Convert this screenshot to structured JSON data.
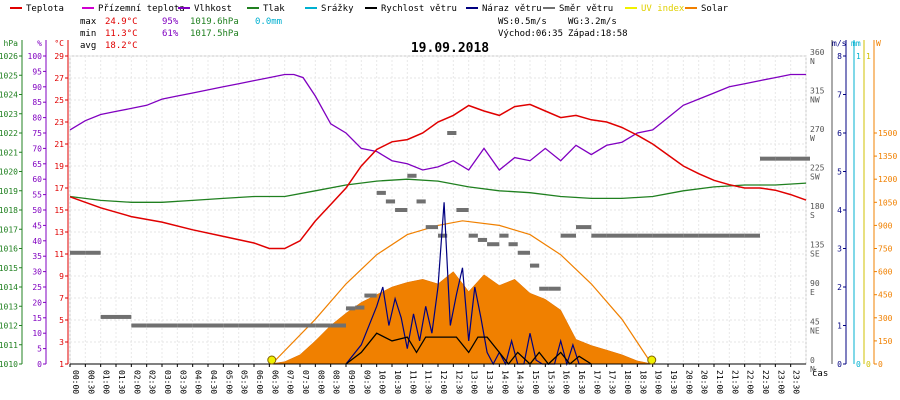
{
  "chart_data": {
    "type": "line",
    "title": "19.09.2018",
    "x_axis_label": "čas",
    "legend": [
      {
        "label": "Teplota",
        "color": "#e00000"
      },
      {
        "label": "Přízemní teplota",
        "color": "#d000d0"
      },
      {
        "label": "Vlhkost",
        "color": "#8000c0"
      },
      {
        "label": "Tlak",
        "color": "#208020"
      },
      {
        "label": "Srážky",
        "color": "#00b0d0"
      },
      {
        "label": "Rychlost větru",
        "color": "#000000"
      },
      {
        "label": "Náraz větru",
        "color": "#000080"
      },
      {
        "label": "Směr větru",
        "color": "#707070"
      },
      {
        "label": "UV index",
        "color": "#f0f000"
      },
      {
        "label": "Solar",
        "color": "#f08000"
      }
    ],
    "stats": {
      "max_label": "max",
      "min_label": "min",
      "avg_label": "avg",
      "max_temp": "24.9°C",
      "max_hum": "95%",
      "max_press": "1019.6hPa",
      "max_rain": "0.0mm",
      "min_temp": "11.3°C",
      "min_hum": "61%",
      "min_press": "1017.5hPa",
      "avg_temp": "18.2°C",
      "ws": "WS:0.5m/s",
      "wg": "WG:3.2m/s",
      "sunrise": "Východ:06:35",
      "sunset": "Západ:18:58"
    },
    "axes": {
      "pressure": {
        "unit": "hPa",
        "min": 1010,
        "max": 1026,
        "ticks": [
          1010,
          1011,
          1012,
          1013,
          1014,
          1015,
          1016,
          1017,
          1018,
          1019,
          1020,
          1021,
          1022,
          1023,
          1024,
          1025,
          1026
        ]
      },
      "humidity": {
        "unit": "%",
        "min": 0,
        "max": 100,
        "ticks": [
          0,
          5,
          10,
          15,
          20,
          25,
          30,
          35,
          40,
          45,
          50,
          55,
          60,
          65,
          70,
          75,
          80,
          85,
          90,
          95,
          100
        ]
      },
      "temperature": {
        "unit": "°C",
        "min": 1,
        "max": 29,
        "ticks": [
          1,
          3,
          5,
          7,
          9,
          11,
          13,
          15,
          17,
          19,
          21,
          23,
          25,
          27,
          29
        ]
      },
      "wind_dir": {
        "unit": "",
        "min": 0,
        "max": 360,
        "ticks": [
          0,
          45,
          90,
          135,
          180,
          225,
          270,
          315,
          360
        ],
        "labels": [
          "N",
          "NE",
          "E",
          "SE",
          "S",
          "SW",
          "W",
          "NW",
          "N"
        ]
      },
      "wind_speed": {
        "unit": "m/s",
        "min": 0,
        "max": 8,
        "ticks": [
          0,
          1,
          2,
          3,
          4,
          5,
          6,
          7,
          8
        ]
      },
      "rain": {
        "unit": "mm",
        "min": 0,
        "max": 1,
        "ticks": [
          0,
          1
        ]
      },
      "uv": {
        "unit": "",
        "min": 0,
        "max": 1,
        "ticks": [
          0,
          1
        ]
      },
      "solar": {
        "unit": "W",
        "min": 0,
        "max": 2000,
        "ticks": [
          0,
          150,
          300,
          450,
          600,
          750,
          900,
          1050,
          1200,
          1350,
          1500
        ]
      }
    },
    "x_ticks": [
      "00:00",
      "00:30",
      "01:00",
      "01:30",
      "02:00",
      "02:30",
      "03:00",
      "03:30",
      "04:00",
      "04:30",
      "05:00",
      "05:30",
      "06:00",
      "06:30",
      "07:00",
      "07:30",
      "08:00",
      "08:30",
      "09:00",
      "09:30",
      "10:00",
      "10:30",
      "11:00",
      "11:30",
      "12:00",
      "12:30",
      "13:00",
      "13:30",
      "14:00",
      "14:30",
      "15:00",
      "15:30",
      "16:00",
      "16:30",
      "17:00",
      "17:30",
      "18:00",
      "18:30",
      "19:00",
      "19:30",
      "20:00",
      "20:30",
      "21:00",
      "21:30",
      "22:00",
      "22:30",
      "23:00",
      "23:30"
    ],
    "sun_markers": [
      6.58,
      18.97
    ],
    "series": {
      "temperature": {
        "x": [
          0,
          1,
          2,
          3,
          4,
          5,
          6,
          6.5,
          7,
          7.5,
          8,
          8.5,
          9,
          9.5,
          10,
          10.5,
          11,
          11.5,
          12,
          12.5,
          13,
          13.5,
          14,
          14.5,
          15,
          15.5,
          16,
          16.5,
          17,
          17.5,
          18,
          18.5,
          19,
          19.5,
          20,
          20.5,
          21,
          21.5,
          22,
          22.5,
          23,
          23.5,
          24
        ],
        "y": [
          16.2,
          15.2,
          14.4,
          13.9,
          13.2,
          12.6,
          12.0,
          11.5,
          11.5,
          12.2,
          14.0,
          15.5,
          17.0,
          19.0,
          20.5,
          21.2,
          21.4,
          22.0,
          23.0,
          23.6,
          24.5,
          24.0,
          23.6,
          24.4,
          24.6,
          24.0,
          23.4,
          23.6,
          23.2,
          23.0,
          22.5,
          21.8,
          21.0,
          20.0,
          19.0,
          18.3,
          17.7,
          17.3,
          17.0,
          17.0,
          16.8,
          16.4,
          15.9
        ]
      },
      "humidity": {
        "x": [
          0,
          0.5,
          1,
          1.5,
          2,
          2.5,
          3,
          3.5,
          4,
          4.5,
          5,
          5.5,
          6,
          6.5,
          7,
          7.3,
          7.6,
          8,
          8.5,
          9,
          9.5,
          10,
          10.5,
          11,
          11.5,
          12,
          12.5,
          13,
          13.5,
          14,
          14.5,
          15,
          15.5,
          16,
          16.5,
          17,
          17.5,
          18,
          18.5,
          19,
          19.5,
          20,
          20.5,
          21,
          21.5,
          22,
          22.5,
          23,
          23.5,
          24
        ],
        "y": [
          76,
          79,
          81,
          82,
          83,
          84,
          86,
          87,
          88,
          89,
          90,
          91,
          92,
          93,
          94,
          94,
          93,
          87,
          78,
          75,
          70,
          69,
          66,
          65,
          63,
          64,
          66,
          63,
          70,
          63,
          67,
          66,
          70,
          66,
          71,
          68,
          71,
          72,
          75,
          76,
          80,
          84,
          86,
          88,
          90,
          91,
          92,
          93,
          94,
          94
        ]
      },
      "pressure": {
        "x": [
          0,
          1,
          2,
          3,
          4,
          5,
          6,
          7,
          8,
          9,
          10,
          11,
          12,
          13,
          14,
          15,
          16,
          17,
          18,
          19,
          20,
          21,
          22,
          23,
          24
        ],
        "y": [
          1018.7,
          1018.5,
          1018.4,
          1018.4,
          1018.5,
          1018.6,
          1018.7,
          1018.7,
          1019.0,
          1019.3,
          1019.5,
          1019.6,
          1019.5,
          1019.2,
          1019.0,
          1018.9,
          1018.7,
          1018.6,
          1018.6,
          1018.7,
          1019.0,
          1019.2,
          1019.3,
          1019.3,
          1019.4
        ]
      },
      "solar_radiation": {
        "x": [
          6.5,
          7,
          7.5,
          8,
          8.5,
          9,
          9.5,
          10,
          10.5,
          11,
          11.5,
          12,
          12.5,
          13,
          13.5,
          14,
          14.5,
          15,
          15.5,
          16,
          16.5,
          17,
          17.5,
          18,
          18.5,
          19
        ],
        "y": [
          0,
          15,
          60,
          150,
          250,
          330,
          400,
          450,
          500,
          530,
          550,
          520,
          600,
          470,
          580,
          510,
          550,
          460,
          420,
          350,
          160,
          120,
          90,
          60,
          20,
          0
        ]
      },
      "solar_theoretical_max": {
        "x": [
          6.58,
          8,
          9,
          10,
          11,
          12,
          12.8,
          14,
          15,
          16,
          17,
          18,
          18.97
        ],
        "y": [
          0,
          290,
          520,
          710,
          840,
          900,
          930,
          900,
          840,
          710,
          520,
          290,
          0
        ]
      },
      "wind_speed": {
        "x": [
          9,
          9.5,
          10,
          10.5,
          11,
          11.3,
          11.6,
          12,
          12.3,
          12.6,
          13,
          13.3,
          13.6,
          14,
          14.3,
          14.6,
          15,
          15.3,
          15.6,
          16,
          16.3,
          16.6,
          17
        ],
        "y": [
          0,
          0.3,
          0.8,
          0.6,
          0.7,
          0.3,
          0.7,
          0.7,
          0.7,
          0.7,
          0.3,
          0.7,
          0.7,
          0.3,
          0.0,
          0.3,
          0.0,
          0.3,
          0.0,
          0.3,
          0.0,
          0.2,
          0
        ]
      },
      "wind_gust": {
        "x": [
          9,
          9.5,
          10,
          10.2,
          10.4,
          10.6,
          10.8,
          11,
          11.2,
          11.4,
          11.6,
          11.8,
          12,
          12.2,
          12.4,
          12.6,
          12.8,
          13,
          13.2,
          13.4,
          13.6,
          13.8,
          14,
          14.2,
          14.4,
          14.6,
          14.8,
          15,
          15.2,
          15.4,
          15.6,
          15.8,
          16,
          16.2,
          16.4,
          16.6,
          17
        ],
        "y": [
          0,
          0.5,
          1.5,
          2.0,
          1.0,
          1.7,
          1.2,
          0.4,
          1.3,
          0.6,
          1.5,
          0.8,
          2.0,
          4.2,
          1.0,
          1.8,
          2.5,
          0.6,
          2.0,
          1.2,
          0.3,
          0,
          0.3,
          0,
          0.6,
          0,
          0,
          0.8,
          0.1,
          0,
          0,
          0,
          0.6,
          0,
          0.5,
          0,
          0
        ]
      },
      "wind_direction": {
        "x": [
          0,
          0.5,
          1,
          1.5,
          2,
          2.5,
          3,
          3.5,
          4,
          4.5,
          5,
          5.5,
          6,
          6.5,
          7,
          7.5,
          8,
          8.5,
          9,
          9.3,
          9.6,
          10,
          10.3,
          10.6,
          11,
          11.3,
          11.6,
          12,
          12.3,
          12.6,
          13,
          13.3,
          13.6,
          14,
          14.3,
          14.6,
          15,
          15.3,
          15.6,
          16,
          16.5,
          17,
          17.5,
          18,
          18.5,
          19,
          19.5,
          20,
          20.5,
          21,
          21.5,
          22,
          22.5,
          23,
          23.5,
          24
        ],
        "y": [
          130,
          130,
          55,
          55,
          45,
          45,
          45,
          45,
          45,
          45,
          45,
          45,
          45,
          45,
          45,
          45,
          45,
          45,
          65,
          66,
          80,
          200,
          190,
          180,
          220,
          190,
          160,
          150,
          270,
          180,
          150,
          145,
          140,
          150,
          140,
          130,
          115,
          88,
          88,
          150,
          160,
          150,
          150,
          150,
          150,
          150,
          150,
          150,
          150,
          150,
          150,
          150,
          240,
          240,
          240,
          240
        ]
      }
    }
  }
}
